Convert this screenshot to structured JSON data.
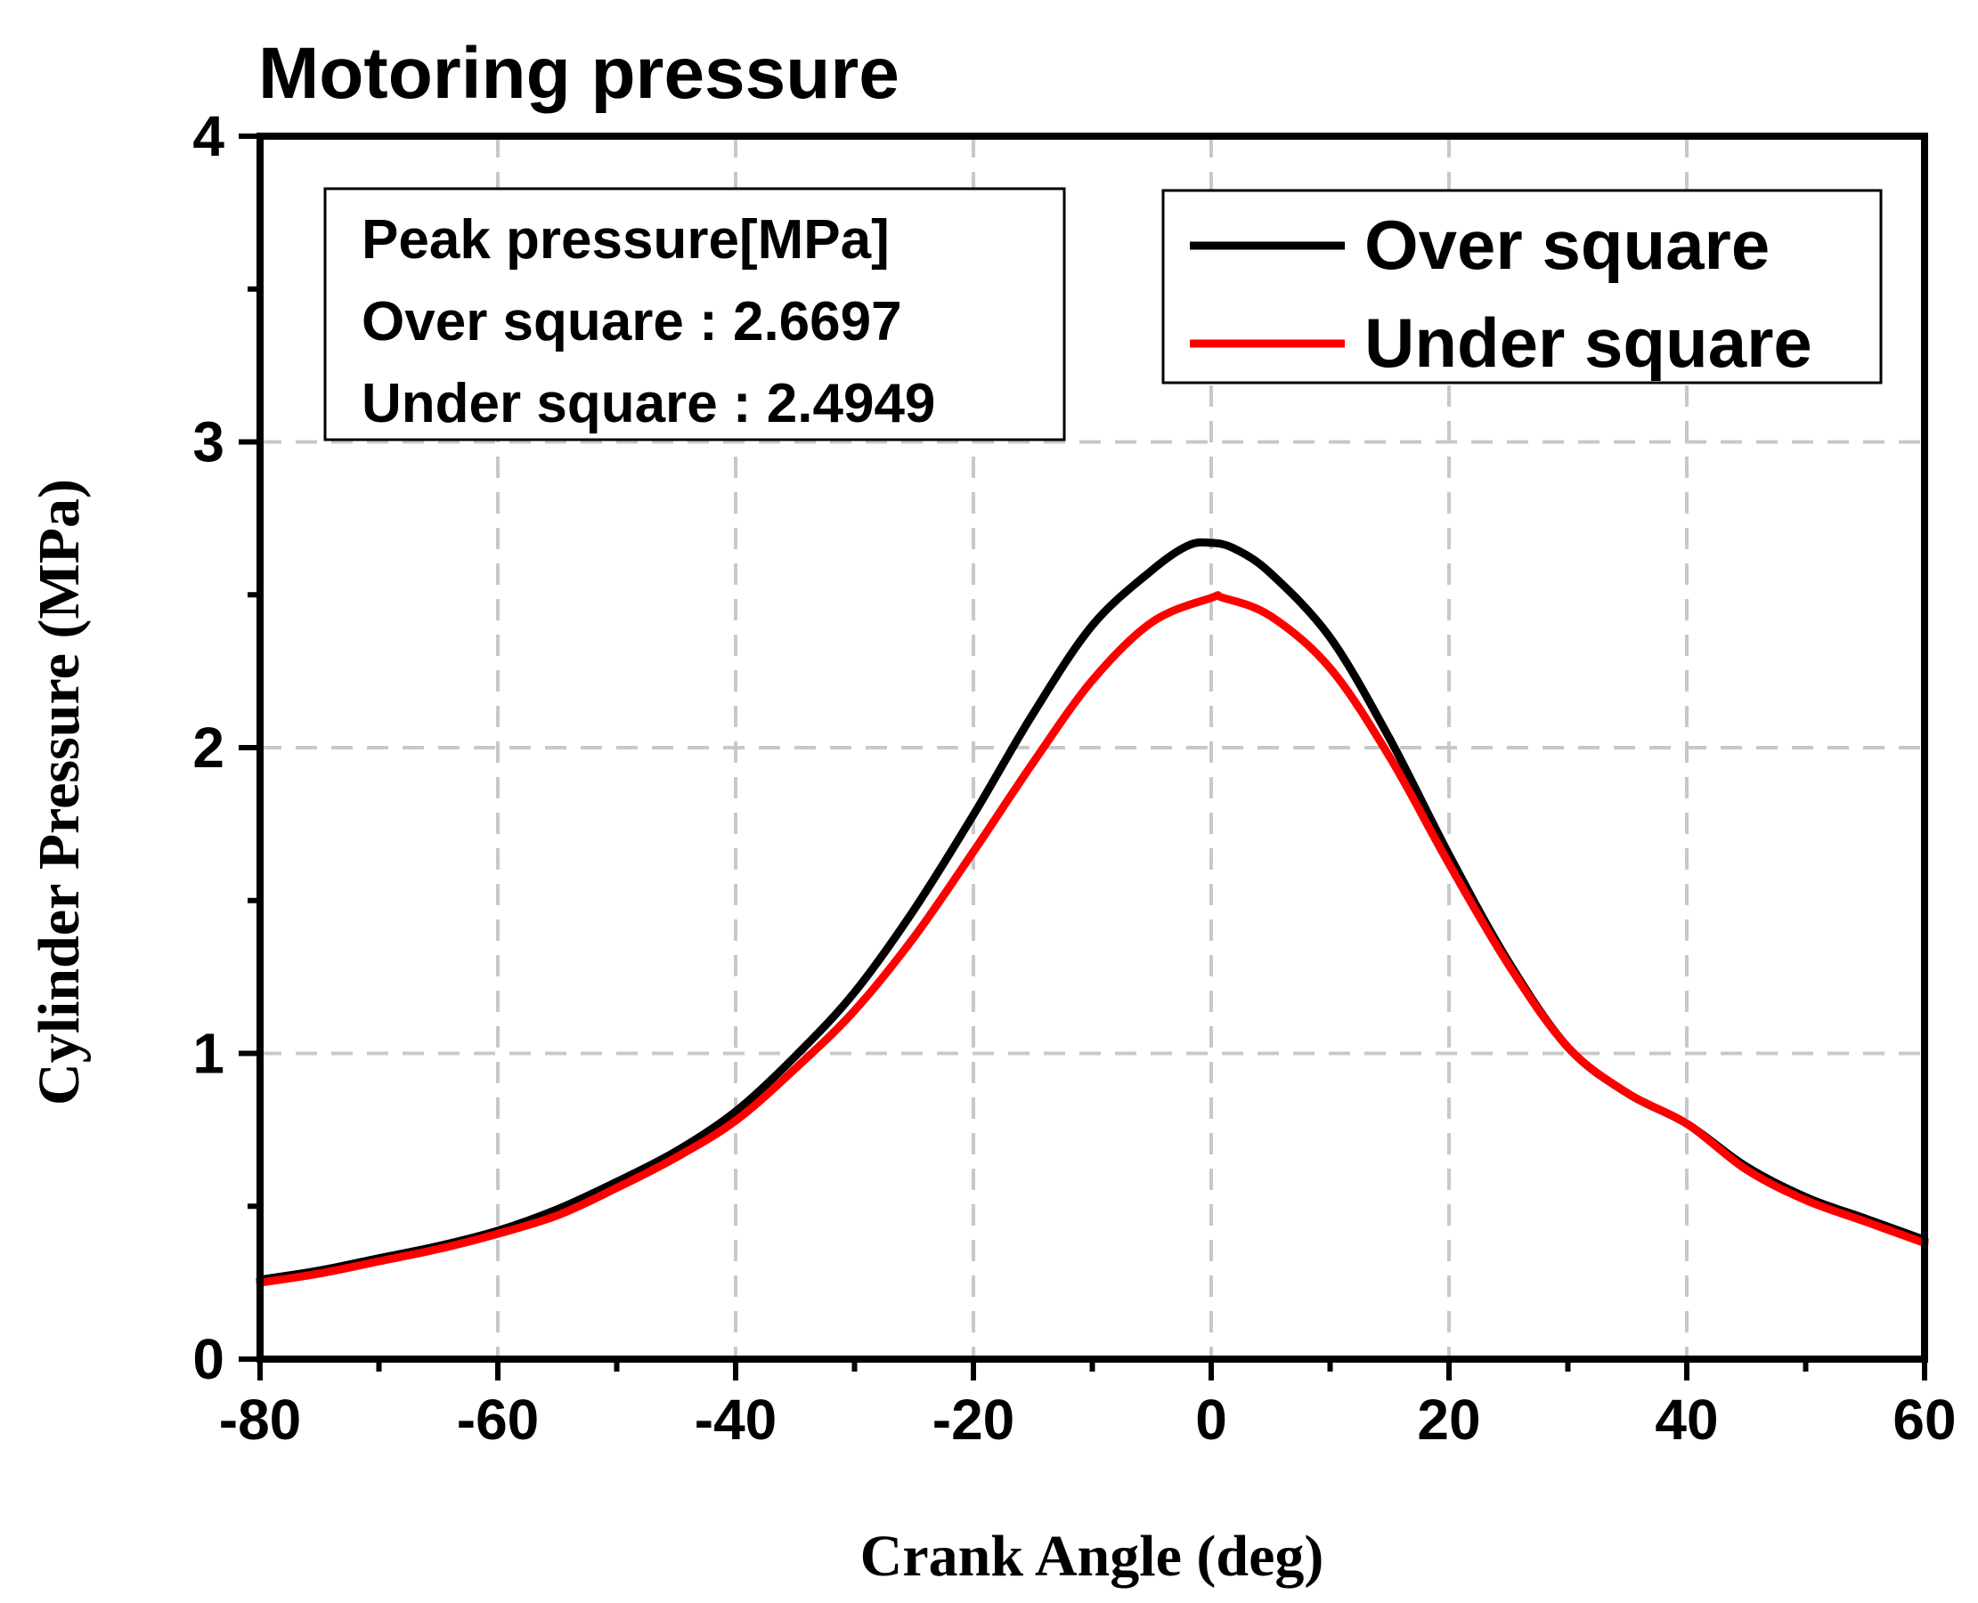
{
  "chart_data": {
    "type": "line",
    "title": "Motoring pressure",
    "xlabel": "Crank Angle (deg)",
    "ylabel": "Cylinder Pressure (MPa)",
    "xlim": [
      -80,
      60
    ],
    "ylim": [
      0,
      4
    ],
    "xticks": [
      -80,
      -60,
      -40,
      -20,
      0,
      20,
      40,
      60
    ],
    "yticks": [
      0,
      1,
      2,
      3,
      4
    ],
    "grid": true,
    "legend_position": "top-right",
    "annotation": {
      "title": "Peak pressure[MPa]",
      "lines": [
        "Over square : 2.6697",
        "Under square : 2.4949"
      ]
    },
    "series": [
      {
        "name": "Over square",
        "color": "#000000",
        "x": [
          -80,
          -75,
          -70,
          -65,
          -60,
          -55,
          -50,
          -45,
          -40,
          -35,
          -30,
          -25,
          -20,
          -15,
          -10,
          -5,
          -2,
          0,
          2,
          5,
          10,
          15,
          20,
          25,
          30,
          35,
          40,
          45,
          50,
          55,
          60
        ],
        "y": [
          0.26,
          0.29,
          0.33,
          0.37,
          0.42,
          0.49,
          0.58,
          0.68,
          0.81,
          0.99,
          1.2,
          1.47,
          1.78,
          2.11,
          2.4,
          2.58,
          2.66,
          2.67,
          2.65,
          2.57,
          2.36,
          2.03,
          1.65,
          1.3,
          1.02,
          0.87,
          0.77,
          0.63,
          0.53,
          0.46,
          0.39
        ]
      },
      {
        "name": "Under square",
        "color": "#ff0000",
        "x": [
          -80,
          -75,
          -70,
          -65,
          -60,
          -55,
          -50,
          -45,
          -40,
          -35,
          -30,
          -25,
          -20,
          -15,
          -10,
          -5,
          0,
          1,
          5,
          10,
          15,
          20,
          25,
          30,
          35,
          40,
          45,
          50,
          55,
          60
        ],
        "y": [
          0.25,
          0.28,
          0.32,
          0.36,
          0.41,
          0.47,
          0.56,
          0.66,
          0.78,
          0.95,
          1.14,
          1.38,
          1.66,
          1.95,
          2.22,
          2.41,
          2.49,
          2.49,
          2.43,
          2.26,
          1.97,
          1.62,
          1.29,
          1.02,
          0.87,
          0.77,
          0.62,
          0.52,
          0.45,
          0.38
        ]
      }
    ]
  }
}
